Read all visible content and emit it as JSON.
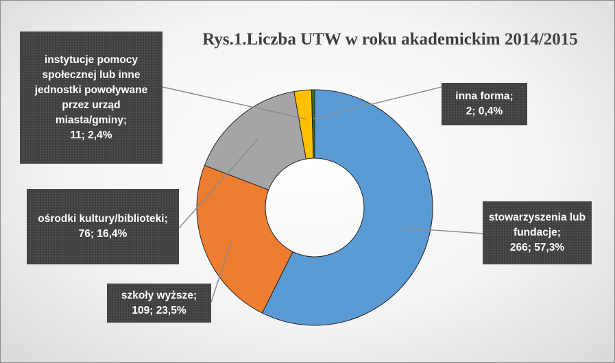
{
  "chart_data": {
    "type": "donut",
    "title": "Rys.1.Liczba UTW w roku akademickim 2014/2015",
    "categories": [
      "stowarzyszenia lub fundacje;",
      "szkoły wyższe;",
      "ośrodki kultury/biblioteki;",
      "instytucje pomocy społecznej lub inne jednostki powoływane przez urząd miasta/gminy;",
      "inna forma;"
    ],
    "values": [
      266,
      109,
      76,
      11,
      2
    ],
    "value_labels": [
      "266; 57,3%",
      "109; 23,5%",
      "76; 16,4%",
      "11; 2,4%",
      "2; 0,4%"
    ],
    "colors": [
      "#5b9bd5",
      "#ed7d31",
      "#a5a5a5",
      "#ffc000",
      "#3e6b1f"
    ]
  }
}
